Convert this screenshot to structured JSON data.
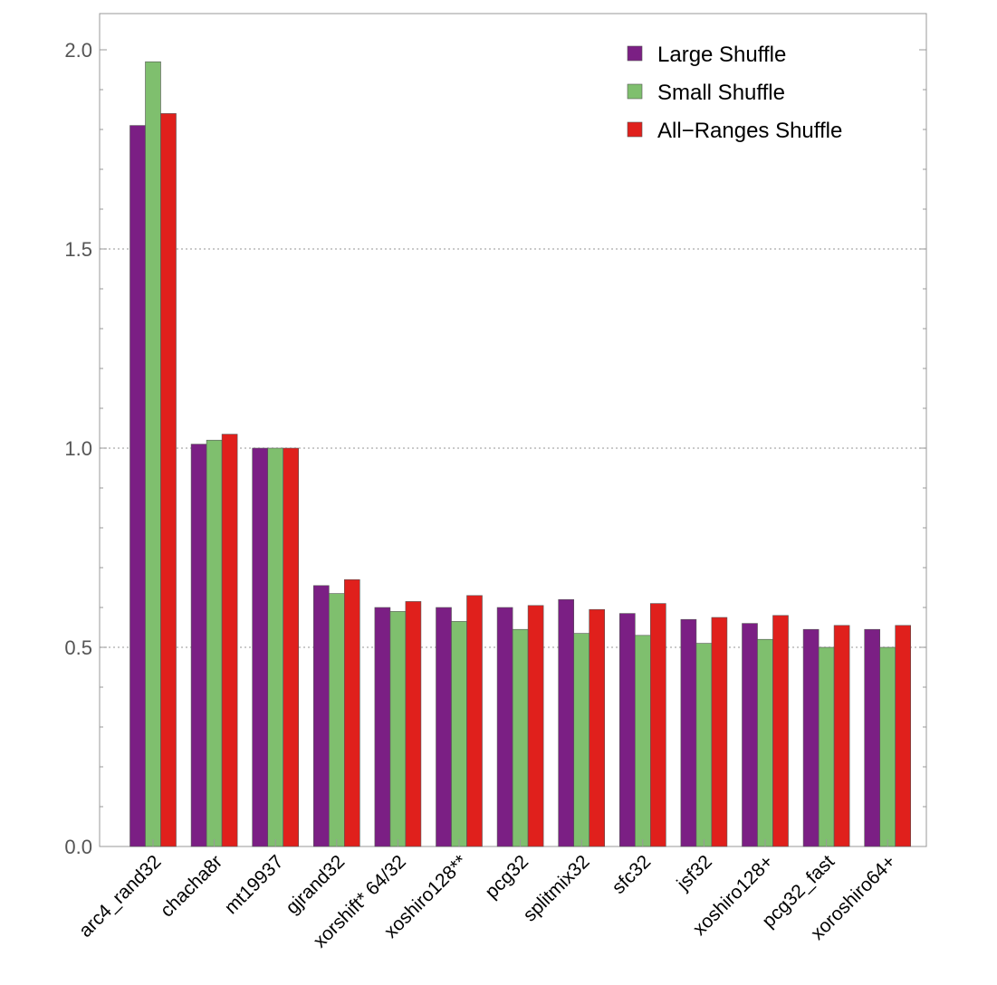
{
  "chart_data": {
    "type": "bar",
    "title": "",
    "xlabel": "",
    "ylabel": "",
    "ylim": [
      0,
      2.0
    ],
    "yticks": [
      "0.0",
      "0.5",
      "1.0",
      "1.5",
      "2.0"
    ],
    "grid": "horizontal dotted lines at 0.5, 1.0, 1.5",
    "legend_position": "top-right",
    "categories": [
      "arc4_rand32",
      "chacha8r",
      "mt19937",
      "gjrand32",
      "xorshift* 64/32",
      "xoshiro128**",
      "pcg32",
      "splitmix32",
      "sfc32",
      "jsf32",
      "xoshiro128+",
      "pcg32_fast",
      "xoroshiro64+"
    ],
    "series": [
      {
        "name": "Large Shuffle",
        "color": "#7b1f84",
        "values": [
          1.81,
          1.01,
          1.0,
          0.655,
          0.6,
          0.6,
          0.6,
          0.62,
          0.585,
          0.57,
          0.56,
          0.545,
          0.545
        ]
      },
      {
        "name": "Small Shuffle",
        "color": "#7fbf6e",
        "values": [
          1.97,
          1.02,
          1.0,
          0.635,
          0.59,
          0.565,
          0.545,
          0.535,
          0.53,
          0.51,
          0.52,
          0.5,
          0.5
        ]
      },
      {
        "name": "All−Ranges Shuffle",
        "color": "#e0201c",
        "values": [
          1.84,
          1.035,
          1.0,
          0.67,
          0.615,
          0.63,
          0.605,
          0.595,
          0.61,
          0.575,
          0.58,
          0.555,
          0.555
        ]
      }
    ]
  }
}
